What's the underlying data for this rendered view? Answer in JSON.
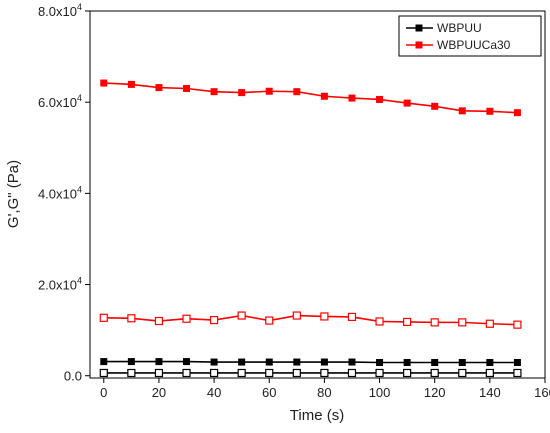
{
  "chart_data": {
    "type": "line",
    "title": "",
    "xlabel": "Time (s)",
    "ylabel": "G',G\" (Pa)",
    "xlim": [
      -5,
      160
    ],
    "ylim": [
      -500,
      80000
    ],
    "xticks": [
      0,
      20,
      40,
      60,
      80,
      100,
      120,
      140,
      160
    ],
    "xtick_labels": [
      "0",
      "20",
      "40",
      "60",
      "80",
      "100",
      "120",
      "140",
      "160"
    ],
    "yticks": [
      0,
      20000,
      40000,
      60000,
      80000
    ],
    "ytick_labels": [
      {
        "mantissa": "0.0",
        "exp": ""
      },
      {
        "mantissa": "2.0x10",
        "exp": "4"
      },
      {
        "mantissa": "4.0x10",
        "exp": "4"
      },
      {
        "mantissa": "6.0x10",
        "exp": "4"
      },
      {
        "mantissa": "8.0x10",
        "exp": "4"
      }
    ],
    "x": [
      0,
      10,
      20,
      30,
      40,
      50,
      60,
      70,
      80,
      90,
      100,
      110,
      120,
      130,
      140,
      150
    ],
    "series": [
      {
        "name": "WBPUU",
        "color": "#000000",
        "marker": "filled-square",
        "values": [
          3100,
          3100,
          3100,
          3100,
          3000,
          3000,
          3000,
          3000,
          3000,
          3000,
          2900,
          2900,
          2900,
          2900,
          2900,
          2900
        ]
      },
      {
        "name": "WBPUUCa30",
        "color": "#ff0000",
        "marker": "filled-square",
        "values": [
          64200,
          63900,
          63200,
          63000,
          62300,
          62100,
          62400,
          62300,
          61300,
          60900,
          60600,
          59800,
          59100,
          58100,
          58000,
          57700
        ]
      },
      {
        "name": "",
        "color": "#000000",
        "marker": "open-square",
        "values": [
          600,
          600,
          600,
          600,
          600,
          600,
          600,
          600,
          600,
          600,
          600,
          600,
          600,
          600,
          600,
          600
        ]
      },
      {
        "name": "",
        "color": "#ff0000",
        "marker": "open-square",
        "values": [
          12700,
          12600,
          12000,
          12500,
          12200,
          13200,
          12100,
          13200,
          13000,
          12900,
          11900,
          11800,
          11700,
          11700,
          11400,
          11200
        ]
      }
    ],
    "legend": {
      "position": "top-right",
      "entries": [
        "WBPUU",
        "WBPUUCa30"
      ]
    },
    "grid": false
  }
}
